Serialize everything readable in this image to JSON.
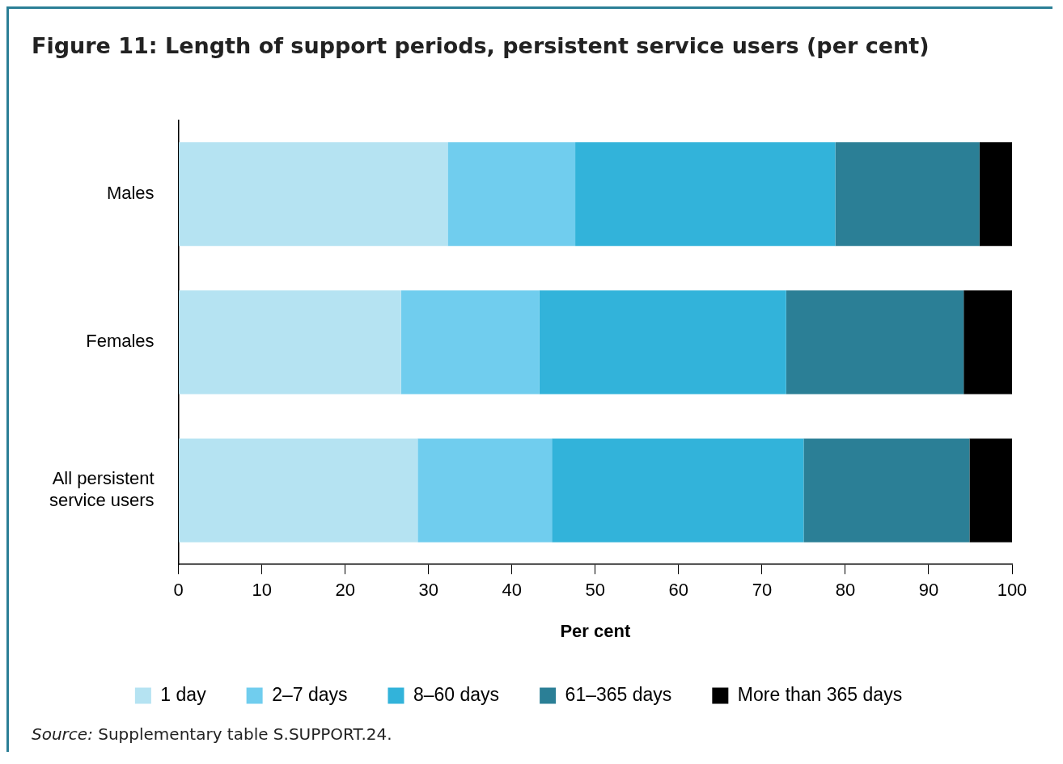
{
  "chart_data": {
    "type": "bar",
    "orientation": "horizontal",
    "stacked": true,
    "title": "Figure 11: Length of support periods, persistent service users (per cent)",
    "xlabel": "Per cent",
    "categories": [
      "Males",
      "Females",
      "All persistent service users"
    ],
    "series": [
      {
        "name": "1 day",
        "color": "#b5e3f2",
        "values": [
          32.3,
          26.7,
          28.7
        ]
      },
      {
        "name": "2–7 days",
        "color": "#70cdee",
        "values": [
          15.3,
          16.6,
          16.1
        ]
      },
      {
        "name": "8–60 days",
        "color": "#32b3da",
        "values": [
          31.2,
          29.6,
          30.2
        ]
      },
      {
        "name": "61–365 days",
        "color": "#2b7f96",
        "values": [
          17.3,
          21.3,
          19.9
        ]
      },
      {
        "name": "More than 365 days",
        "color": "#000000",
        "values": [
          3.9,
          5.8,
          5.1
        ]
      }
    ],
    "xlim": [
      0,
      100
    ],
    "xticks": [
      0,
      10,
      20,
      30,
      40,
      50,
      60,
      70,
      80,
      90,
      100
    ],
    "grid": false,
    "legend": "bottom",
    "annotations": [
      "Source: Supplementary table S.SUPPORT.24."
    ]
  }
}
